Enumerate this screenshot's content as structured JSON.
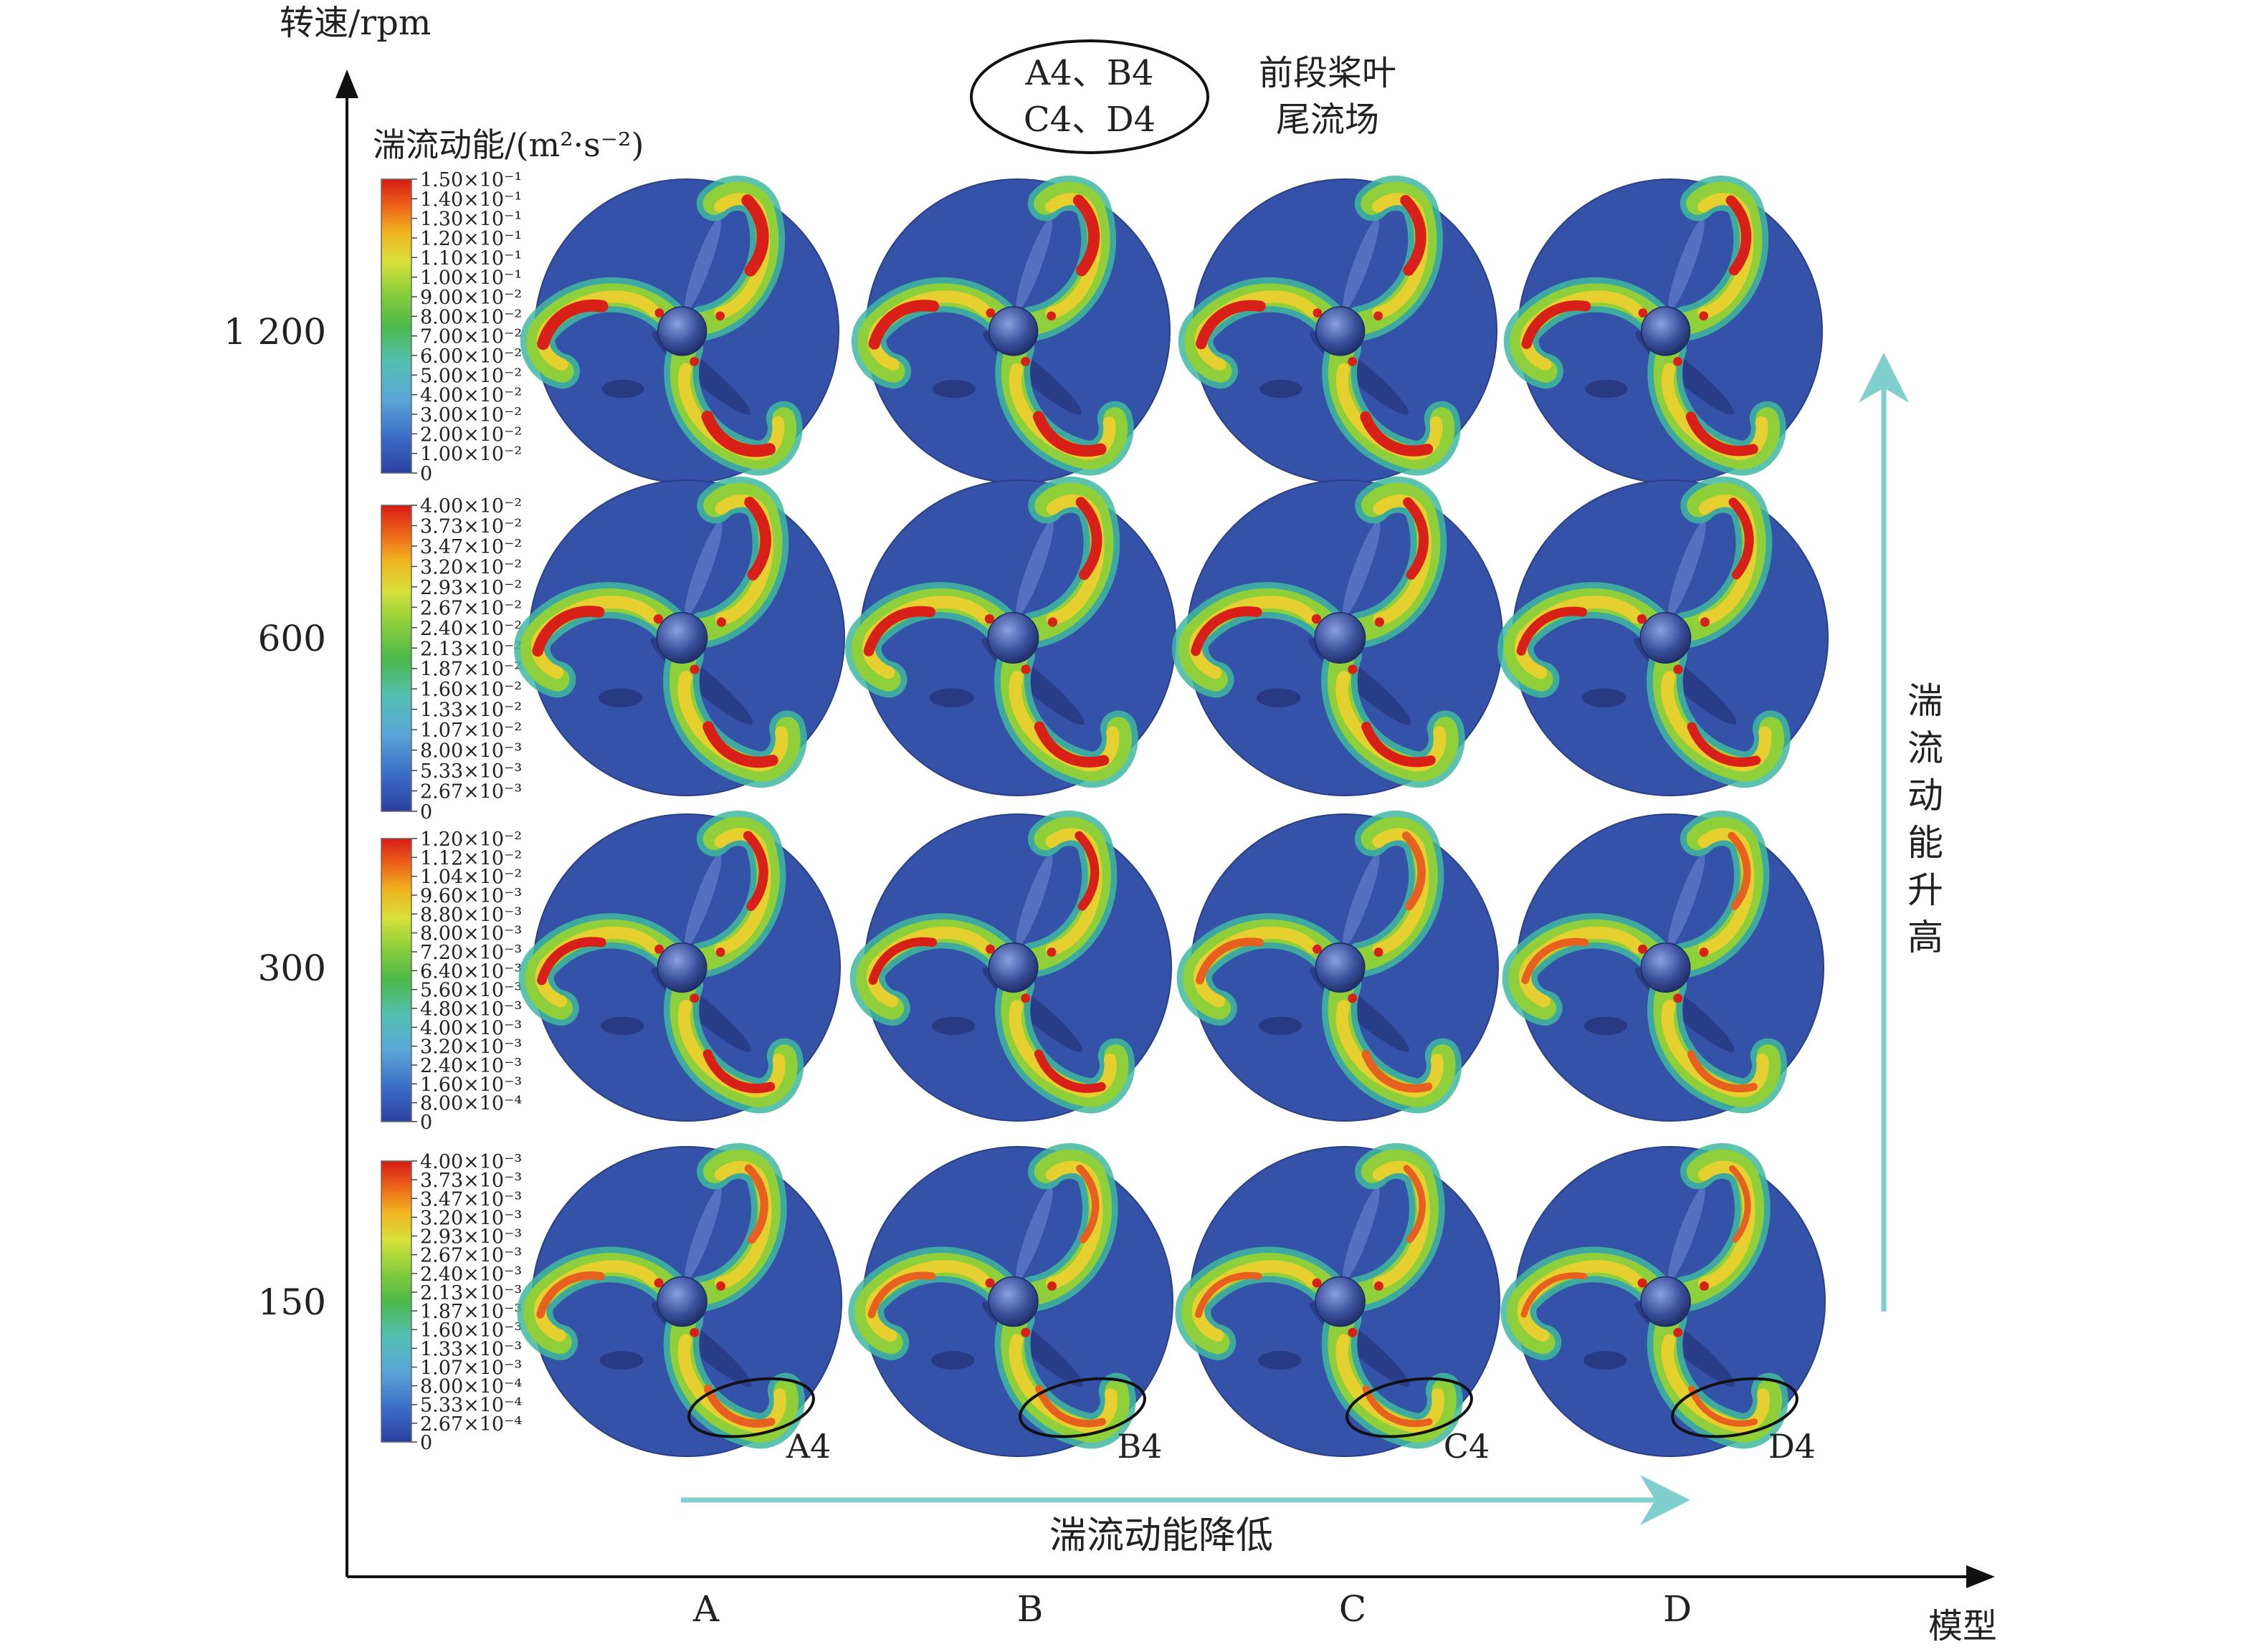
{
  "figure": {
    "y_axis_label": "转速/rpm",
    "x_axis_label": "模型",
    "colorbar_title": "湍流动能/(m²·s⁻²)",
    "header_ellipse_lines": [
      "A4、B4",
      "C4、D4"
    ],
    "header_lines": [
      "前段桨叶",
      "尾流场"
    ],
    "arrow_right_label": "湍流动能降低",
    "arrow_up_label": "湍流动能升高",
    "arrow_up_chars": [
      "湍",
      "流",
      "动",
      "能",
      "升",
      "高"
    ]
  },
  "rows": [
    {
      "speed": "1 200"
    },
    {
      "speed": "600"
    },
    {
      "speed": "300"
    },
    {
      "speed": "150"
    }
  ],
  "columns": [
    {
      "model": "A",
      "tag": "A4"
    },
    {
      "model": "B",
      "tag": "B4"
    },
    {
      "model": "C",
      "tag": "C4"
    },
    {
      "model": "D",
      "tag": "D4"
    }
  ],
  "colorbars": [
    {
      "labels": [
        "1.50×10⁻¹",
        "1.40×10⁻¹",
        "1.30×10⁻¹",
        "1.20×10⁻¹",
        "1.10×10⁻¹",
        "1.00×10⁻¹",
        "9.00×10⁻²",
        "8.00×10⁻²",
        "7.00×10⁻²",
        "6.00×10⁻²",
        "5.00×10⁻²",
        "4.00×10⁻²",
        "3.00×10⁻²",
        "2.00×10⁻²",
        "1.00×10⁻²",
        "0"
      ]
    },
    {
      "labels": [
        "4.00×10⁻²",
        "3.73×10⁻²",
        "3.47×10⁻²",
        "3.20×10⁻²",
        "2.93×10⁻²",
        "2.67×10⁻²",
        "2.40×10⁻²",
        "2.13×10⁻²",
        "1.87×10⁻²",
        "1.60×10⁻²",
        "1.33×10⁻²",
        "1.07×10⁻²",
        "8.00×10⁻³",
        "5.33×10⁻³",
        "2.67×10⁻³",
        "0"
      ]
    },
    {
      "labels": [
        "1.20×10⁻²",
        "1.12×10⁻²",
        "1.04×10⁻²",
        "9.60×10⁻³",
        "8.80×10⁻³",
        "8.00×10⁻³",
        "7.20×10⁻³",
        "6.40×10⁻³",
        "5.60×10⁻³",
        "4.80×10⁻³",
        "4.00×10⁻³",
        "3.20×10⁻³",
        "2.40×10⁻³",
        "1.60×10⁻³",
        "8.00×10⁻⁴",
        "0"
      ]
    },
    {
      "labels": [
        "4.00×10⁻³",
        "3.73×10⁻³",
        "3.47×10⁻³",
        "3.20×10⁻³",
        "2.93×10⁻³",
        "2.67×10⁻³",
        "2.40×10⁻³",
        "2.13×10⁻³",
        "1.87×10⁻³",
        "1.60×10⁻³",
        "1.33×10⁻³",
        "1.07×10⁻³",
        "8.00×10⁻⁴",
        "5.33×10⁻⁴",
        "2.67×10⁻⁴",
        "0"
      ]
    }
  ],
  "colors": {
    "disc_background": "#3453a8",
    "arrow": "#7fcfcf",
    "axis": "#111111"
  }
}
